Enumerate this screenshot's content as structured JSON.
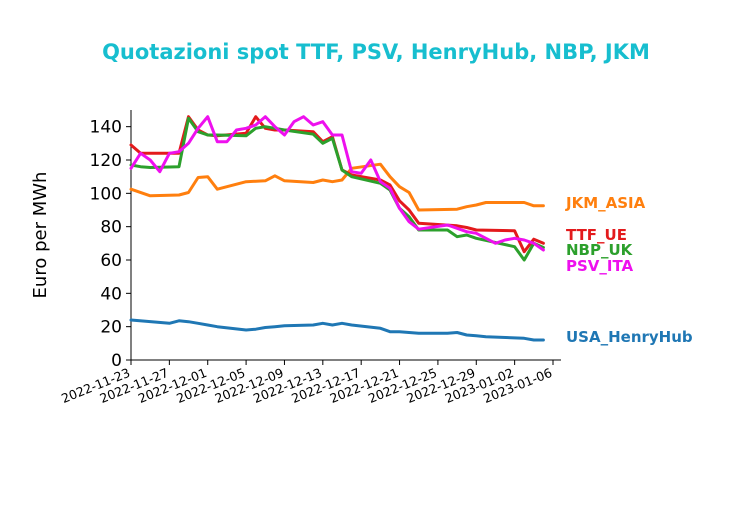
{
  "chart_data": {
    "type": "line",
    "title": "Quotazioni spot TTF, PSV, HenryHub, NBP, JKM",
    "xlabel": "",
    "ylabel": "Euro per MWh",
    "xlim": [
      "2022-11-23",
      "2023-01-06"
    ],
    "ylim": [
      0,
      150
    ],
    "xticks": [
      "2022-11-23",
      "2022-11-27",
      "2022-12-01",
      "2022-12-05",
      "2022-12-09",
      "2022-12-13",
      "2022-12-17",
      "2022-12-21",
      "2022-12-25",
      "2022-12-29",
      "2023-01-02",
      "2023-01-06"
    ],
    "yticks": [
      0,
      20,
      40,
      60,
      80,
      100,
      120,
      140
    ],
    "grid": false,
    "legend": "direct labels at right end of each line",
    "series": [
      {
        "name": "JKM_ASIA",
        "color": "#ff7f0e",
        "x": [
          "2022-11-23",
          "2022-11-25",
          "2022-11-28",
          "2022-11-29",
          "2022-11-30",
          "2022-12-01",
          "2022-12-02",
          "2022-12-03",
          "2022-12-05",
          "2022-12-07",
          "2022-12-08",
          "2022-12-09",
          "2022-12-12",
          "2022-12-13",
          "2022-12-14",
          "2022-12-15",
          "2022-12-16",
          "2022-12-19",
          "2022-12-20",
          "2022-12-21",
          "2022-12-22",
          "2022-12-23",
          "2022-12-27",
          "2022-12-28",
          "2022-12-29",
          "2022-12-30",
          "2023-01-03",
          "2023-01-04",
          "2023-01-05"
        ],
        "values": [
          102.5,
          98.5,
          99,
          100.5,
          109.5,
          110,
          102.5,
          104,
          107,
          107.5,
          110.5,
          107.5,
          106.5,
          108,
          107,
          108,
          115,
          117.5,
          110,
          104,
          100.5,
          90,
          90.5,
          92,
          93,
          94.5,
          94.5,
          92.5,
          92.5
        ],
        "end_label": "JKM_ASIA"
      },
      {
        "name": "TTF_UE",
        "color": "#e31a1c",
        "x": [
          "2022-11-23",
          "2022-11-24",
          "2022-11-28",
          "2022-11-29",
          "2022-11-30",
          "2022-12-01",
          "2022-12-02",
          "2022-12-05",
          "2022-12-06",
          "2022-12-07",
          "2022-12-08",
          "2022-12-09",
          "2022-12-12",
          "2022-12-13",
          "2022-12-14",
          "2022-12-15",
          "2022-12-16",
          "2022-12-19",
          "2022-12-20",
          "2022-12-21",
          "2022-12-22",
          "2022-12-23",
          "2022-12-27",
          "2022-12-28",
          "2022-12-29",
          "2023-01-02",
          "2023-01-03",
          "2023-01-04",
          "2023-01-05"
        ],
        "values": [
          129,
          124,
          124,
          146,
          138,
          135,
          134.5,
          136,
          146,
          139,
          138,
          138,
          137,
          131,
          134,
          114,
          111,
          108,
          105,
          95.5,
          90,
          82,
          80.5,
          79.5,
          78,
          77.5,
          65,
          72.5,
          70
        ],
        "end_label": "TTF_UE"
      },
      {
        "name": "NBP_UK",
        "color": "#2ca02c",
        "x": [
          "2022-11-23",
          "2022-11-24",
          "2022-11-25",
          "2022-11-28",
          "2022-11-29",
          "2022-11-30",
          "2022-12-01",
          "2022-12-02",
          "2022-12-05",
          "2022-12-06",
          "2022-12-07",
          "2022-12-08",
          "2022-12-09",
          "2022-12-12",
          "2022-12-13",
          "2022-12-14",
          "2022-12-15",
          "2022-12-16",
          "2022-12-19",
          "2022-12-20",
          "2022-12-21",
          "2022-12-22",
          "2022-12-23",
          "2022-12-26",
          "2022-12-27",
          "2022-12-28",
          "2022-12-29",
          "2023-01-02",
          "2023-01-03",
          "2023-01-04",
          "2023-01-05"
        ],
        "values": [
          117,
          116,
          115.5,
          116,
          145,
          137,
          135,
          135,
          134.5,
          139,
          140,
          139,
          138,
          135.5,
          130,
          133,
          114,
          110,
          106,
          102,
          91,
          86,
          78,
          78,
          74,
          75,
          73,
          68,
          60,
          70,
          67.5
        ],
        "end_label": "NBP_UK"
      },
      {
        "name": "PSV_ITA",
        "color": "#ee10ee",
        "x": [
          "2022-11-23",
          "2022-11-24",
          "2022-11-25",
          "2022-11-26",
          "2022-11-27",
          "2022-11-28",
          "2022-11-29",
          "2022-11-30",
          "2022-12-01",
          "2022-12-02",
          "2022-12-03",
          "2022-12-04",
          "2022-12-05",
          "2022-12-06",
          "2022-12-07",
          "2022-12-08",
          "2022-12-09",
          "2022-12-10",
          "2022-12-11",
          "2022-12-12",
          "2022-12-13",
          "2022-12-14",
          "2022-12-15",
          "2022-12-16",
          "2022-12-17",
          "2022-12-18",
          "2022-12-19",
          "2022-12-20",
          "2022-12-21",
          "2022-12-22",
          "2022-12-23",
          "2022-12-26",
          "2022-12-27",
          "2022-12-28",
          "2022-12-29",
          "2022-12-30",
          "2022-12-31",
          "2023-01-01",
          "2023-01-02",
          "2023-01-03",
          "2023-01-04",
          "2023-01-05"
        ],
        "values": [
          115,
          124,
          120,
          113,
          124,
          125,
          130,
          139,
          146,
          131,
          131,
          138,
          139,
          141,
          146,
          140,
          135,
          143,
          146,
          141,
          143,
          135,
          135,
          113,
          112,
          120,
          107,
          103,
          91,
          83,
          78.5,
          81,
          79,
          77,
          76,
          73,
          70,
          72,
          73,
          72,
          70,
          66
        ],
        "end_label": "PSV_ITA"
      },
      {
        "name": "USA_HenryHub",
        "color": "#1f77b4",
        "x": [
          "2022-11-23",
          "2022-11-27",
          "2022-11-28",
          "2022-11-29",
          "2022-11-30",
          "2022-12-01",
          "2022-12-02",
          "2022-12-05",
          "2022-12-06",
          "2022-12-07",
          "2022-12-08",
          "2022-12-09",
          "2022-12-12",
          "2022-12-13",
          "2022-12-14",
          "2022-12-15",
          "2022-12-16",
          "2022-12-19",
          "2022-12-20",
          "2022-12-21",
          "2022-12-22",
          "2022-12-23",
          "2022-12-26",
          "2022-12-27",
          "2022-12-28",
          "2022-12-29",
          "2022-12-30",
          "2023-01-03",
          "2023-01-04",
          "2023-01-05"
        ],
        "values": [
          24,
          22,
          23.5,
          23,
          22,
          21,
          20,
          18,
          18.5,
          19.5,
          20,
          20.5,
          21,
          22,
          21,
          22,
          21,
          19,
          17,
          17,
          16.5,
          16,
          16,
          16.5,
          15,
          14.5,
          14,
          13,
          12,
          12
        ],
        "end_label": "USA_HenryHub"
      }
    ]
  }
}
